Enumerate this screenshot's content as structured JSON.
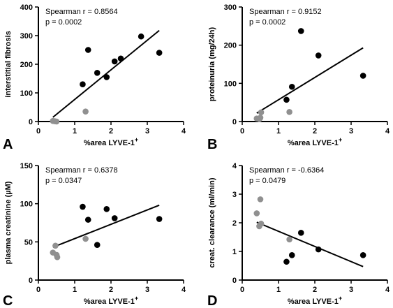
{
  "chart_data": [
    {
      "type": "scatter",
      "panel": "A",
      "xlabel": "%area LYVE-1",
      "xlabel_sup": "+",
      "ylabel": "interstitial fibrosis",
      "xlim": [
        0,
        4
      ],
      "ylim": [
        0,
        400
      ],
      "xticks": [
        0,
        1,
        2,
        3,
        4
      ],
      "yticks": [
        0,
        100,
        200,
        300,
        400
      ],
      "stats": [
        "Spearman r = 0.8564",
        "p = 0.0002"
      ],
      "series": [
        {
          "color": "#000000",
          "points": [
            [
              1.22,
              130
            ],
            [
              1.37,
              250
            ],
            [
              1.62,
              170
            ],
            [
              1.88,
              155
            ],
            [
              2.1,
              210
            ],
            [
              2.27,
              220
            ],
            [
              2.83,
              297
            ],
            [
              3.33,
              240
            ]
          ]
        },
        {
          "color": "#909090",
          "points": [
            [
              0.4,
              2
            ],
            [
              0.45,
              1
            ],
            [
              0.5,
              0
            ],
            [
              1.3,
              35
            ]
          ]
        }
      ],
      "fit_line": [
        [
          0.4,
          15
        ],
        [
          3.33,
          318
        ]
      ]
    },
    {
      "type": "scatter",
      "panel": "B",
      "xlabel": "%area LYVE-1",
      "xlabel_sup": "+",
      "ylabel": "proteinuria (mg/24h)",
      "xlim": [
        0,
        4
      ],
      "ylim": [
        0,
        300
      ],
      "xticks": [
        0,
        1,
        2,
        3,
        4
      ],
      "yticks": [
        0,
        100,
        200,
        300
      ],
      "stats": [
        "Spearman r = 0.9152",
        "p = 0.0002"
      ],
      "series": [
        {
          "color": "#000000",
          "points": [
            [
              1.22,
              57
            ],
            [
              1.37,
              91
            ],
            [
              1.62,
              237
            ],
            [
              2.1,
              173
            ],
            [
              3.33,
              120
            ]
          ]
        },
        {
          "color": "#909090",
          "points": [
            [
              0.4,
              8
            ],
            [
              0.47,
              6
            ],
            [
              0.5,
              10
            ],
            [
              0.52,
              24
            ],
            [
              1.3,
              25
            ]
          ]
        }
      ],
      "fit_line": [
        [
          0.4,
          22
        ],
        [
          3.33,
          193
        ]
      ]
    },
    {
      "type": "scatter",
      "panel": "C",
      "xlabel": "%area LYVE-1",
      "xlabel_sup": "+",
      "ylabel": "plasma creatinine (µM)",
      "xlim": [
        0,
        4
      ],
      "ylim": [
        0,
        150
      ],
      "xticks": [
        0,
        1,
        2,
        3,
        4
      ],
      "yticks": [
        0,
        50,
        100,
        150
      ],
      "stats": [
        "Spearman r = 0.6378",
        "p = 0.0347"
      ],
      "series": [
        {
          "color": "#000000",
          "points": [
            [
              1.22,
              96
            ],
            [
              1.37,
              79
            ],
            [
              1.62,
              46
            ],
            [
              1.88,
              93
            ],
            [
              2.1,
              81
            ],
            [
              3.33,
              80
            ]
          ]
        },
        {
          "color": "#909090",
          "points": [
            [
              0.4,
              36
            ],
            [
              0.47,
              45
            ],
            [
              0.5,
              33
            ],
            [
              0.52,
              30
            ],
            [
              1.3,
              54
            ]
          ]
        }
      ],
      "fit_line": [
        [
          0.4,
          43
        ],
        [
          3.33,
          98
        ]
      ]
    },
    {
      "type": "scatter",
      "panel": "D",
      "xlabel": "%area LYVE-1",
      "xlabel_sup": "+",
      "ylabel": "creat. clearance (ml/min)",
      "xlim": [
        0,
        4
      ],
      "ylim": [
        0,
        4
      ],
      "xticks": [
        0,
        1,
        2,
        3,
        4
      ],
      "yticks": [
        0,
        1,
        2,
        3,
        4
      ],
      "stats": [
        "Spearman r = -0.6364",
        "p = 0.0479"
      ],
      "series": [
        {
          "color": "#000000",
          "points": [
            [
              1.22,
              0.64
            ],
            [
              1.37,
              0.87
            ],
            [
              1.62,
              1.65
            ],
            [
              2.1,
              1.07
            ],
            [
              3.33,
              0.87
            ]
          ]
        },
        {
          "color": "#909090",
          "points": [
            [
              0.4,
              2.33
            ],
            [
              0.47,
              1.88
            ],
            [
              0.5,
              2.82
            ],
            [
              0.52,
              1.97
            ],
            [
              1.3,
              1.42
            ]
          ]
        }
      ],
      "fit_line": [
        [
          0.4,
          2.02
        ],
        [
          3.33,
          0.47
        ]
      ]
    }
  ]
}
